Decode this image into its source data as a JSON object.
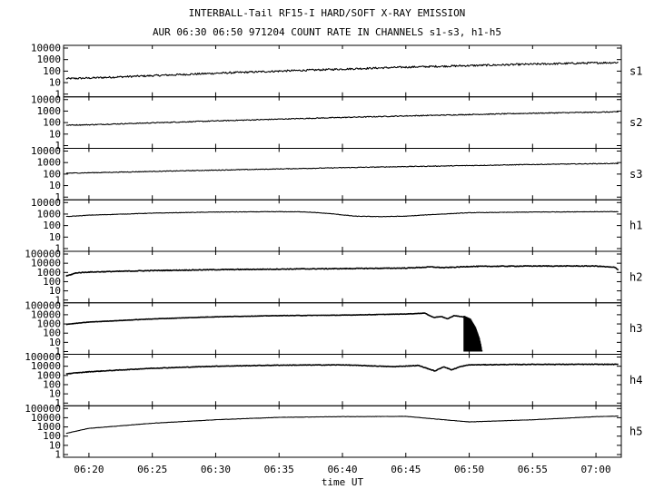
{
  "title": "INTERBALL-Tail RF15-I HARD/SOFT X-RAY EMISSION",
  "subtitle": "AUR 06:30 06:50 971204  COUNT RATE IN CHANNELS s1-s3, h1-h5",
  "chart_data": {
    "type": "line",
    "title": "INTERBALL-Tail RF15-I HARD/SOFT X-RAY EMISSION",
    "subtitle": "AUR 06:30 06:50 971204  COUNT RATE IN CHANNELS s1-s3, h1-h5",
    "xlabel": "time UT",
    "x_ticks": [
      "06:20",
      "06:25",
      "06:30",
      "06:35",
      "06:40",
      "06:45",
      "06:50",
      "06:55",
      "07:00"
    ],
    "x_tick_minutes": [
      20,
      25,
      30,
      35,
      40,
      45,
      50,
      55,
      60
    ],
    "xlim_minutes": [
      18,
      62
    ],
    "x_unit": "minutes after 06:00 UT",
    "y_scale": "log",
    "grid": false,
    "series": [
      {
        "name": "s1",
        "y_ticks": [
          "10000",
          "1000",
          "100",
          "10",
          "1"
        ],
        "ylim": [
          1,
          10000
        ],
        "noise": 0.08,
        "points": [
          [
            18.2,
            22
          ],
          [
            20,
            25
          ],
          [
            25,
            40
          ],
          [
            30,
            65
          ],
          [
            35,
            100
          ],
          [
            40,
            150
          ],
          [
            45,
            220
          ],
          [
            50,
            300
          ],
          [
            55,
            400
          ],
          [
            60,
            520
          ],
          [
            61.8,
            560
          ]
        ]
      },
      {
        "name": "s2",
        "y_ticks": [
          "10000",
          "1000",
          "100",
          "10",
          "1"
        ],
        "ylim": [
          1,
          10000
        ],
        "noise": 0.04,
        "points": [
          [
            18.2,
            60
          ],
          [
            20,
            65
          ],
          [
            25,
            95
          ],
          [
            30,
            140
          ],
          [
            35,
            200
          ],
          [
            40,
            280
          ],
          [
            45,
            380
          ],
          [
            50,
            500
          ],
          [
            55,
            650
          ],
          [
            60,
            800
          ],
          [
            61.8,
            850
          ]
        ]
      },
      {
        "name": "s3",
        "y_ticks": [
          "10000",
          "1000",
          "100",
          "10",
          "1"
        ],
        "ylim": [
          1,
          10000
        ],
        "noise": 0.03,
        "points": [
          [
            18.2,
            120
          ],
          [
            20,
            130
          ],
          [
            25,
            170
          ],
          [
            30,
            220
          ],
          [
            35,
            280
          ],
          [
            40,
            360
          ],
          [
            45,
            450
          ],
          [
            50,
            550
          ],
          [
            55,
            680
          ],
          [
            60,
            800
          ],
          [
            61.8,
            840
          ]
        ]
      },
      {
        "name": "h1",
        "y_ticks": [
          "10000",
          "1000",
          "100",
          "10",
          "1"
        ],
        "ylim": [
          1,
          10000
        ],
        "noise": 0.02,
        "points": [
          [
            18.2,
            600
          ],
          [
            20,
            800
          ],
          [
            25,
            1200
          ],
          [
            30,
            1500
          ],
          [
            35,
            1600
          ],
          [
            37,
            1550
          ],
          [
            39,
            1100
          ],
          [
            41,
            650
          ],
          [
            43,
            600
          ],
          [
            45,
            650
          ],
          [
            47,
            900
          ],
          [
            50,
            1300
          ],
          [
            55,
            1500
          ],
          [
            60,
            1600
          ],
          [
            61.8,
            1600
          ]
        ]
      },
      {
        "name": "h2",
        "y_ticks": [
          "100000",
          "10000",
          "1000",
          "100",
          "10",
          "1"
        ],
        "ylim": [
          1,
          100000
        ],
        "noise": 0.04,
        "points": [
          [
            18.2,
            400
          ],
          [
            19,
            900
          ],
          [
            20,
            1100
          ],
          [
            25,
            1600
          ],
          [
            30,
            2000
          ],
          [
            35,
            2300
          ],
          [
            40,
            2600
          ],
          [
            45,
            3000
          ],
          [
            47,
            4000
          ],
          [
            48,
            3300
          ],
          [
            49,
            3800
          ],
          [
            50,
            4500
          ],
          [
            55,
            5000
          ],
          [
            60,
            5000
          ],
          [
            61.5,
            3500
          ],
          [
            61.8,
            1800
          ]
        ]
      },
      {
        "name": "h3",
        "y_ticks": [
          "100000",
          "10000",
          "1000",
          "100",
          "10",
          "1"
        ],
        "ylim": [
          1,
          100000
        ],
        "noise": 0.02,
        "points": [
          [
            18.2,
            900
          ],
          [
            20,
            1600
          ],
          [
            25,
            3500
          ],
          [
            30,
            6000
          ],
          [
            35,
            8000
          ],
          [
            40,
            9000
          ],
          [
            45,
            12000
          ],
          [
            46.5,
            15000
          ],
          [
            47.2,
            5000
          ],
          [
            47.8,
            6500
          ],
          [
            48.3,
            3500
          ],
          [
            48.8,
            8000
          ],
          [
            49.5,
            6000
          ],
          [
            50.1,
            2500
          ],
          [
            50.5,
            300
          ],
          [
            50.8,
            20
          ],
          [
            51,
            1
          ]
        ]
      },
      {
        "name": "h4",
        "y_ticks": [
          "100000",
          "10000",
          "1000",
          "100",
          "10",
          "1"
        ],
        "ylim": [
          1,
          100000
        ],
        "noise": 0.03,
        "points": [
          [
            18.2,
            1500
          ],
          [
            20,
            2500
          ],
          [
            25,
            6000
          ],
          [
            30,
            10000
          ],
          [
            35,
            13000
          ],
          [
            40,
            14000
          ],
          [
            44,
            9000
          ],
          [
            46,
            12000
          ],
          [
            47.3,
            3000
          ],
          [
            48,
            9000
          ],
          [
            48.6,
            4000
          ],
          [
            49.3,
            9000
          ],
          [
            50,
            14000
          ],
          [
            55,
            16000
          ],
          [
            60,
            16000
          ],
          [
            61.8,
            16000
          ]
        ]
      },
      {
        "name": "h5",
        "y_ticks": [
          "100000",
          "10000",
          "1000",
          "100",
          "10",
          "1"
        ],
        "ylim": [
          1,
          100000
        ],
        "noise": 0.015,
        "points": [
          [
            18.2,
            200
          ],
          [
            20,
            700
          ],
          [
            25,
            2500
          ],
          [
            30,
            6000
          ],
          [
            35,
            11000
          ],
          [
            40,
            13000
          ],
          [
            45,
            14000
          ],
          [
            48,
            6000
          ],
          [
            50,
            3500
          ],
          [
            55,
            6000
          ],
          [
            60,
            13000
          ],
          [
            61.8,
            15000
          ]
        ]
      }
    ]
  }
}
